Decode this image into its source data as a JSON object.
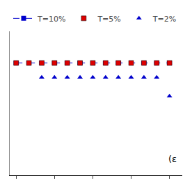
{
  "chart_data": {
    "type": "line",
    "x": [
      0,
      1,
      2,
      3,
      4,
      5,
      6,
      7,
      8,
      9,
      10,
      11,
      12
    ],
    "series": [
      {
        "name": "T=10%",
        "color": "#0000cc",
        "marker": "square",
        "line_style": "dashed",
        "values": [
          0.78,
          0.78,
          0.78,
          0.78,
          0.78,
          0.78,
          0.78,
          0.78,
          0.78,
          0.78,
          0.78,
          0.78,
          0.78
        ]
      },
      {
        "name": "T=5%",
        "color": "#dd0000",
        "marker": "square",
        "line_style": "none",
        "values": [
          0.78,
          0.78,
          0.78,
          0.78,
          0.78,
          0.78,
          0.78,
          0.78,
          0.78,
          0.78,
          0.78,
          0.78,
          0.78
        ]
      },
      {
        "name": "T=2%",
        "color": "#0000cc",
        "marker": "triangle-up",
        "line_style": "none",
        "values": [
          null,
          null,
          0.68,
          0.68,
          0.68,
          0.68,
          0.68,
          0.68,
          0.68,
          0.68,
          0.68,
          0.68,
          0.55
        ]
      }
    ],
    "annotations": [
      "(ε"
    ],
    "xlim": [
      -0.5,
      13
    ],
    "xticks": [
      0,
      3,
      6,
      9,
      12
    ],
    "ylim": [
      0.0,
      1.0
    ],
    "yticks": [],
    "tick_labels": false,
    "grid": false,
    "legend": "upper left"
  }
}
